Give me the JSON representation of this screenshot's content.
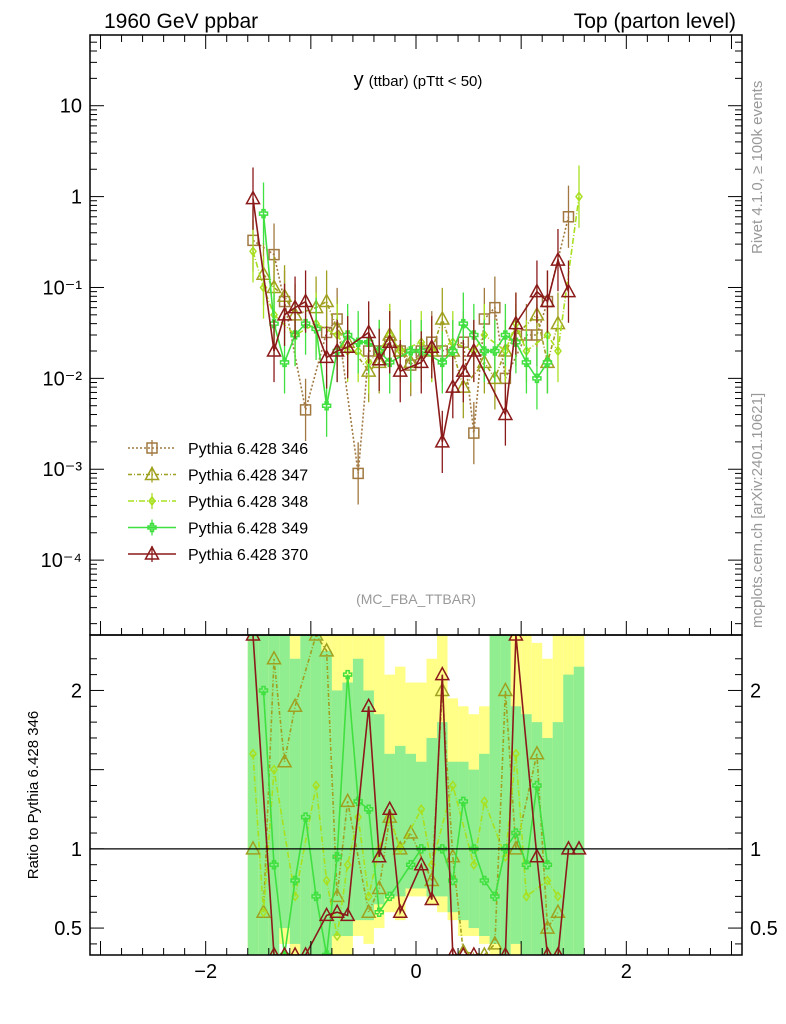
{
  "header": {
    "energy_label": "1960 GeV ppbar",
    "process_label": "Top (parton level)",
    "plot_title_main": "y",
    "plot_title_sub": "(ttbar) (pTtt < 50)",
    "analysis_tag": "(MC_FBA_TTBAR)",
    "side_label_top": "Rivet 4.1.0, ≥ 100k events",
    "side_label_bottom": "mcplots.cern.ch [arXiv:2401.10621]",
    "ratio_ylabel": "Ratio to Pythia 6.428 346"
  },
  "chart_data": [
    {
      "type": "line",
      "panel": "main",
      "title": "y (ttbar) (pTtt < 50)",
      "yscale": "log",
      "xlim": [
        -3.1,
        3.1
      ],
      "ylim": [
        1.5e-05,
        60
      ],
      "y_tick_labels": [
        "10",
        "1",
        "10⁻¹",
        "10⁻²",
        "10⁻³",
        "10⁻⁴"
      ],
      "y_tick_values": [
        10,
        1,
        0.1,
        0.01,
        0.001,
        0.0001
      ],
      "legend_position": "lower-left",
      "series": [
        {
          "name": "Pythia 6.428 346",
          "color": "#a07840",
          "marker": "square",
          "dash": "2,2",
          "x": [
            -1.55,
            -1.35,
            -1.25,
            -1.05,
            -0.85,
            -0.75,
            -0.55,
            -0.45,
            -0.35,
            -0.25,
            -0.15,
            -0.05,
            0.05,
            0.15,
            0.25,
            0.45,
            0.55,
            0.65,
            0.75,
            0.85,
            1.05,
            1.15,
            1.25,
            1.45
          ],
          "values": [
            0.33,
            0.23,
            0.07,
            0.0045,
            0.032,
            0.045,
            0.0009,
            0.02,
            0.02,
            0.025,
            0.02,
            0.014,
            0.02,
            0.025,
            0.02,
            0.025,
            0.0025,
            0.045,
            0.06,
            0.01,
            0.03,
            0.03,
            0.07,
            0.6
          ]
        },
        {
          "name": "Pythia 6.428 347",
          "color": "#a0a020",
          "marker": "triangle",
          "dash": "4,2,1,2",
          "x": [
            -1.45,
            -1.35,
            -1.25,
            -1.15,
            -0.95,
            -0.85,
            -0.75,
            -0.65,
            -0.45,
            -0.35,
            -0.25,
            -0.15,
            -0.05,
            0.15,
            0.25,
            0.35,
            0.45,
            0.65,
            0.75,
            0.85,
            0.95,
            1.15,
            1.25,
            1.35
          ],
          "values": [
            0.14,
            0.1,
            0.08,
            0.05,
            0.06,
            0.07,
            0.035,
            0.025,
            0.012,
            0.015,
            0.03,
            0.02,
            0.015,
            0.02,
            0.045,
            0.02,
            0.008,
            0.015,
            0.01,
            0.02,
            0.03,
            0.05,
            0.015,
            0.04
          ]
        },
        {
          "name": "Pythia 6.428 348",
          "color": "#a8e020",
          "marker": "diamond",
          "dash": "6,2,1,2",
          "x": [
            -1.55,
            -1.45,
            -1.35,
            -1.15,
            -0.95,
            -0.75,
            -0.65,
            -0.55,
            -0.45,
            -0.35,
            -0.25,
            -0.15,
            0.05,
            0.15,
            0.35,
            0.55,
            0.65,
            0.85,
            0.95,
            1.05,
            1.25,
            1.35,
            1.55
          ],
          "values": [
            0.25,
            0.1,
            0.05,
            0.03,
            0.04,
            0.03,
            0.02,
            0.02,
            0.015,
            0.02,
            0.03,
            0.02,
            0.025,
            0.02,
            0.025,
            0.02,
            0.03,
            0.02,
            0.04,
            0.02,
            0.03,
            0.02,
            1.0
          ]
        },
        {
          "name": "Pythia 6.428 349",
          "color": "#40e040",
          "marker": "cross",
          "dash": "",
          "x": [
            -1.45,
            -1.35,
            -1.25,
            -1.15,
            -1.05,
            -0.95,
            -0.85,
            -0.75,
            -0.65,
            -0.55,
            -0.45,
            -0.35,
            -0.25,
            -0.05,
            0.05,
            0.25,
            0.35,
            0.45,
            0.55,
            0.65,
            0.75,
            0.85,
            0.95,
            1.05,
            1.15,
            1.25
          ],
          "values": [
            0.65,
            0.04,
            0.015,
            0.03,
            0.04,
            0.035,
            0.005,
            0.02,
            0.03,
            0.025,
            0.025,
            0.02,
            0.015,
            0.02,
            0.02,
            0.015,
            0.02,
            0.04,
            0.03,
            0.02,
            0.02,
            0.03,
            0.025,
            0.015,
            0.01,
            0.015
          ]
        },
        {
          "name": "Pythia 6.428 370",
          "color": "#8b1a1a",
          "marker": "triangle",
          "dash": "",
          "x": [
            -1.55,
            -1.35,
            -1.25,
            -1.15,
            -1.05,
            -0.85,
            -0.75,
            -0.65,
            -0.45,
            -0.35,
            -0.25,
            -0.15,
            0.05,
            0.15,
            0.25,
            0.35,
            0.45,
            0.55,
            0.85,
            0.95,
            1.15,
            1.25,
            1.35,
            1.45
          ],
          "values": [
            0.95,
            0.02,
            0.05,
            0.06,
            0.07,
            0.017,
            0.02,
            0.022,
            0.032,
            0.016,
            0.025,
            0.012,
            0.015,
            0.022,
            0.002,
            0.008,
            0.012,
            0.02,
            0.004,
            0.04,
            0.09,
            0.07,
            0.2,
            0.09
          ]
        }
      ]
    },
    {
      "type": "line",
      "panel": "ratio",
      "ylabel": "Ratio to Pythia 6.428 346",
      "xlim": [
        -3.1,
        3.1
      ],
      "ylim": [
        0.33,
        2.35
      ],
      "x_tick_labels": [
        "−2",
        "0",
        "2"
      ],
      "x_tick_values": [
        -2,
        0,
        2
      ],
      "y_tick_labels": [
        "2",
        "1",
        "0.5"
      ],
      "y_tick_values": [
        2,
        1,
        0.5
      ],
      "reference_line": 1,
      "band_x": [
        -1.6,
        -1.5,
        -1.4,
        -1.3,
        -1.2,
        -1.1,
        -1.0,
        -0.9,
        -0.8,
        -0.7,
        -0.6,
        -0.5,
        -0.4,
        -0.3,
        -0.2,
        -0.1,
        0.0,
        0.1,
        0.2,
        0.3,
        0.4,
        0.5,
        0.6,
        0.7,
        0.8,
        0.9,
        1.0,
        1.1,
        1.2,
        1.3,
        1.4,
        1.5,
        1.6
      ],
      "band_yellow_low": [
        0.33,
        0.33,
        0.33,
        0.4,
        0.33,
        0.33,
        0.33,
        0.33,
        0.33,
        0.33,
        0.45,
        0.4,
        0.5,
        0.6,
        0.55,
        0.7,
        0.7,
        0.65,
        0.6,
        0.55,
        0.45,
        0.45,
        0.4,
        0.33,
        0.33,
        0.33,
        0.33,
        0.33,
        0.33,
        0.33,
        0.33,
        0.33
      ],
      "band_yellow_high": [
        2.35,
        2.35,
        2.35,
        2.35,
        2.35,
        2.35,
        2.35,
        2.35,
        2.35,
        2.35,
        2.35,
        2.35,
        2.35,
        2.1,
        2.15,
        2.05,
        2.05,
        2.2,
        2.35,
        1.95,
        1.9,
        1.85,
        1.9,
        2.35,
        2.35,
        2.35,
        2.35,
        2.3,
        2.2,
        2.35,
        2.35,
        2.35
      ],
      "band_green_low": [
        0.33,
        0.33,
        0.33,
        0.5,
        0.4,
        0.33,
        0.33,
        0.33,
        0.45,
        0.45,
        0.55,
        0.55,
        0.65,
        0.7,
        0.7,
        0.75,
        0.75,
        0.7,
        0.7,
        0.6,
        0.55,
        0.5,
        0.45,
        0.4,
        0.33,
        0.4,
        0.33,
        0.33,
        0.33,
        0.33,
        0.33,
        0.33
      ],
      "band_green_high": [
        2.35,
        2.35,
        2.35,
        2.35,
        2.2,
        2.35,
        2.35,
        2.25,
        2.0,
        2.05,
        2.2,
        2.0,
        1.85,
        1.6,
        1.65,
        1.6,
        1.55,
        1.7,
        1.8,
        1.55,
        1.55,
        1.5,
        1.6,
        2.35,
        2.35,
        1.9,
        1.85,
        1.8,
        1.7,
        1.8,
        2.1,
        2.15
      ],
      "series": [
        {
          "name": "Pythia 6.428 347",
          "x": [
            -1.45,
            -1.35,
            -1.25,
            -1.15,
            -0.95,
            -0.85,
            -0.75,
            -0.65,
            -0.45,
            -0.35,
            -0.25,
            -0.15,
            -0.05,
            0.15,
            0.25,
            0.35,
            0.45,
            0.65,
            0.75,
            0.85,
            0.95,
            1.15,
            1.25,
            1.35
          ],
          "values": [
            0.6,
            2.2,
            1.55,
            1.9,
            2.35,
            2.25,
            0.7,
            1.3,
            0.6,
            0.75,
            1.2,
            1.0,
            1.1,
            0.8,
            2.0,
            0.95,
            0.35,
            0.33,
            0.4,
            2.0,
            1.0,
            1.6,
            0.5,
            0.6
          ]
        },
        {
          "name": "Pythia 6.428 348",
          "x": [
            -1.55,
            -1.45,
            -1.35,
            -1.15,
            -0.95,
            -0.85,
            -0.75,
            -0.65,
            -0.55,
            -0.45,
            -0.35,
            -0.25,
            -0.15,
            0.05,
            0.15,
            0.35,
            0.55,
            0.65,
            0.85,
            0.95,
            1.05,
            1.25,
            1.35
          ],
          "values": [
            1.6,
            0.6,
            1.5,
            0.7,
            1.4,
            0.8,
            0.45,
            0.9,
            1.2,
            0.7,
            1.0,
            1.2,
            1.0,
            1.25,
            0.9,
            1.4,
            0.9,
            1.3,
            0.95,
            1.6,
            0.7,
            0.8,
            0.7
          ]
        },
        {
          "name": "Pythia 6.428 349",
          "x": [
            -1.45,
            -1.35,
            -1.25,
            -1.15,
            -1.05,
            -0.95,
            -0.85,
            -0.75,
            -0.65,
            -0.55,
            -0.45,
            -0.35,
            -0.25,
            -0.05,
            0.05,
            0.25,
            0.35,
            0.45,
            0.55,
            0.65,
            0.75,
            0.85,
            0.95,
            1.05,
            1.15,
            1.25
          ],
          "values": [
            2.0,
            0.9,
            0.33,
            0.8,
            1.2,
            0.7,
            0.33,
            0.95,
            2.1,
            1.3,
            1.25,
            0.6,
            0.7,
            0.9,
            1.0,
            1.0,
            0.8,
            1.3,
            1.0,
            0.8,
            0.7,
            1.0,
            1.1,
            0.9,
            1.4,
            0.9
          ]
        },
        {
          "name": "Pythia 6.428 370",
          "x": [
            -1.55,
            -1.35,
            -1.25,
            -1.15,
            -1.05,
            -0.85,
            -0.75,
            -0.65,
            -0.45,
            -0.35,
            -0.25,
            -0.15,
            0.05,
            0.15,
            0.25,
            0.35,
            0.45,
            0.55,
            0.85,
            0.95,
            1.15,
            1.25,
            1.35,
            1.45
          ],
          "values": [
            2.35,
            0.33,
            0.33,
            0.33,
            0.33,
            0.58,
            0.6,
            0.58,
            1.9,
            0.95,
            1.25,
            0.6,
            0.9,
            0.68,
            2.1,
            0.33,
            0.33,
            0.33,
            0.33,
            2.35,
            0.95,
            0.33,
            0.33,
            1.0
          ]
        }
      ]
    }
  ]
}
